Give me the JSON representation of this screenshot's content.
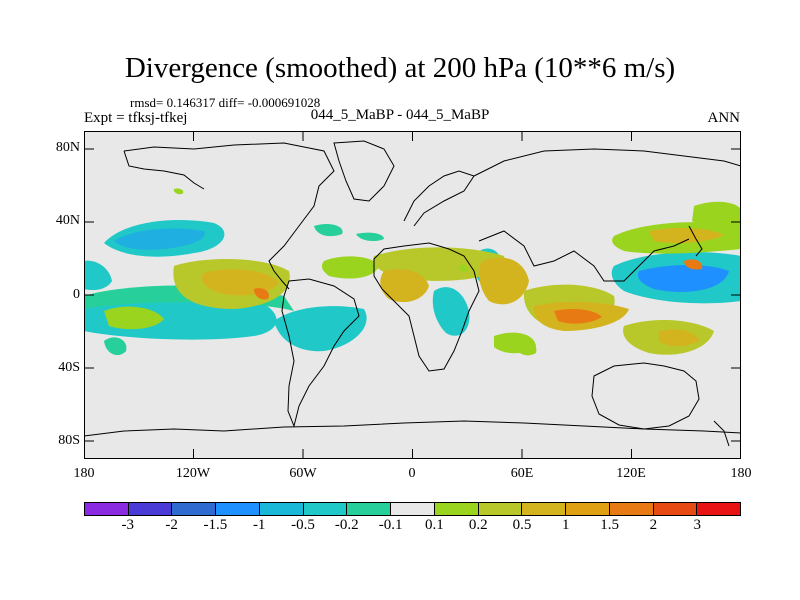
{
  "title": "Divergence (smoothed) at 200 hPa (10**6 m/s)",
  "stats": "rmsd= 0.146317 diff= -0.000691028",
  "expt": "Expt = tfksj-tfkej",
  "cases": "044_5_MaBP - 044_5_MaBP",
  "season": "ANN",
  "map": {
    "y_ticks": [
      "80N",
      "40N",
      "0",
      "40S",
      "80S"
    ],
    "x_ticks": [
      "180",
      "120W",
      "60W",
      "0",
      "60E",
      "120E",
      "180"
    ]
  },
  "colorbar": {
    "colors": [
      "#8a2be2",
      "#4b3bd6",
      "#2f6ad0",
      "#1e90ff",
      "#19b8d8",
      "#20c8c8",
      "#27cf9a",
      "#e8e8e8",
      "#9bd41e",
      "#b8c82a",
      "#d4b41e",
      "#e0a014",
      "#e87a14",
      "#e84a14",
      "#e81414"
    ],
    "labels": [
      "-3",
      "-2",
      "-1.5",
      "-1",
      "-0.5",
      "-0.2",
      "-0.1",
      "0.1",
      "0.2",
      "0.5",
      "1",
      "1.5",
      "2",
      "3"
    ]
  },
  "colors": {
    "background": "#e8e8e8",
    "land_outline": "#000000",
    "positive_light": "#9bd41e",
    "positive_mid": "#d4b41e",
    "positive_strong": "#e87a14",
    "negative_light": "#27cf9a",
    "negative_mid": "#20c8c8",
    "negative_strong": "#1e90ff"
  }
}
